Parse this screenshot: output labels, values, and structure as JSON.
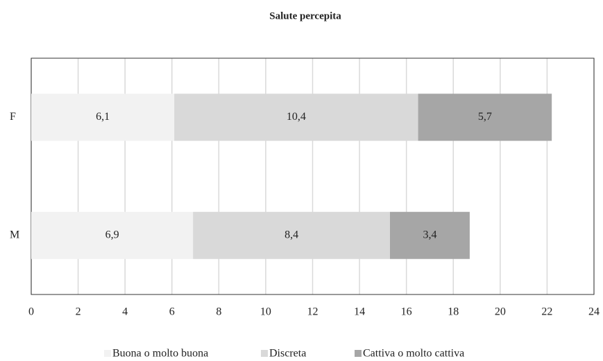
{
  "chart_data": {
    "type": "stacked-bar-horizontal",
    "title": "Salute percepita",
    "categories": [
      "F",
      "M"
    ],
    "series": [
      {
        "name": "Buona o molto buona",
        "color": "#f2f2f2",
        "values": [
          6.1,
          6.9
        ],
        "value_labels": [
          "6,1",
          "6,9"
        ]
      },
      {
        "name": "Discreta",
        "color": "#d9d9d9",
        "values": [
          10.4,
          8.4
        ],
        "value_labels": [
          "10,4",
          "8,4"
        ]
      },
      {
        "name": "Cattiva o molto cattiva",
        "color": "#a6a6a6",
        "values": [
          5.7,
          3.4
        ],
        "value_labels": [
          "5,7",
          "3,4"
        ]
      }
    ],
    "xlim": [
      0,
      24
    ],
    "xticks": [
      0,
      2,
      4,
      6,
      8,
      10,
      12,
      14,
      16,
      18,
      20,
      22,
      24
    ],
    "grid": true,
    "legend": "bottom"
  }
}
